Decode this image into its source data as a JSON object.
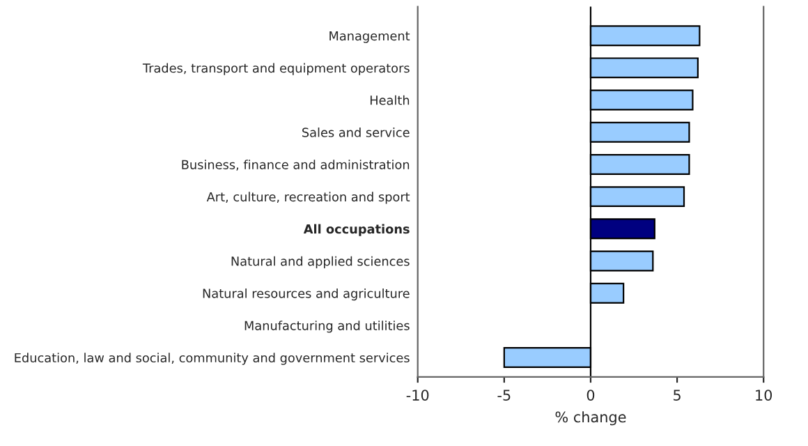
{
  "chart_data": {
    "type": "bar",
    "orientation": "horizontal",
    "xlabel": "% change",
    "categories": [
      "Management",
      "Trades, transport and equipment operators",
      "Health",
      "Sales and service",
      "Business, finance and administration",
      "Art, culture, recreation and sport",
      "All occupations",
      "Natural and applied sciences",
      "Natural resources and agriculture",
      "Manufacturing and utilities",
      "Education, law and social, community and government services"
    ],
    "values": [
      6.3,
      6.2,
      5.9,
      5.7,
      5.7,
      5.4,
      3.7,
      3.6,
      1.9,
      0,
      -5.0
    ],
    "colors": [
      "#99ccff",
      "#99ccff",
      "#99ccff",
      "#99ccff",
      "#99ccff",
      "#99ccff",
      "#000080",
      "#99ccff",
      "#99ccff",
      "#99ccff",
      "#99ccff"
    ],
    "xlim": [
      -10,
      10
    ],
    "xticks": [
      -10,
      -5,
      0,
      5,
      10
    ],
    "ref_lines": [
      {
        "axis": "x",
        "value": 0,
        "color": "#000000"
      }
    ],
    "grid": false,
    "legend": false
  }
}
